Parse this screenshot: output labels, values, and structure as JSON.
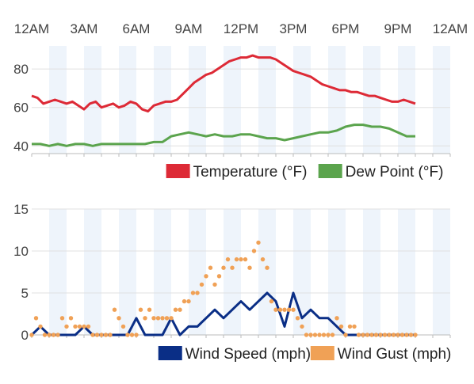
{
  "time_labels": [
    "12AM",
    "3AM",
    "6AM",
    "9AM",
    "12PM",
    "3PM",
    "6PM",
    "9PM",
    "12AM"
  ],
  "colors": {
    "temperature": "#dd2a36",
    "dew_point": "#5ba44d",
    "wind_speed": "#0a2e86",
    "wind_gust": "#f0a156",
    "band": "#eef4fb",
    "grid": "#e0e0e0",
    "text": "#444444"
  },
  "chart_data": [
    {
      "type": "line",
      "x_unit": "hours since midnight",
      "ylim": [
        36,
        92
      ],
      "yticks": [
        40,
        60,
        80
      ],
      "grid": true,
      "legend": "bottom-right",
      "series": [
        {
          "name": "Temperature (°F)",
          "x": [
            0,
            0.33,
            0.67,
            1,
            1.33,
            1.67,
            2,
            2.33,
            2.67,
            3,
            3.33,
            3.67,
            4,
            4.33,
            4.67,
            5,
            5.33,
            5.67,
            6,
            6.33,
            6.67,
            7,
            7.33,
            7.67,
            8,
            8.33,
            8.67,
            9,
            9.33,
            9.67,
            10,
            10.33,
            10.67,
            11,
            11.33,
            11.67,
            12,
            12.33,
            12.67,
            13,
            13.33,
            13.67,
            14,
            14.33,
            14.67,
            15,
            15.33,
            15.67,
            16,
            16.33,
            16.67,
            17,
            17.33,
            17.67,
            18,
            18.33,
            18.67,
            19,
            19.33,
            19.67,
            20,
            20.33,
            20.67,
            21,
            21.33,
            21.67,
            22
          ],
          "values": [
            66,
            65,
            62,
            63,
            64,
            63,
            62,
            63,
            61,
            59,
            62,
            63,
            60,
            61,
            62,
            60,
            61,
            63,
            62,
            59,
            58,
            61,
            62,
            63,
            63,
            64,
            67,
            70,
            73,
            75,
            77,
            78,
            80,
            82,
            84,
            85,
            86,
            86,
            87,
            86,
            86,
            86,
            85,
            83,
            81,
            79,
            78,
            77,
            76,
            74,
            72,
            71,
            70,
            69,
            69,
            68,
            68,
            67,
            66,
            66,
            65,
            64,
            63,
            63,
            64,
            63,
            62
          ]
        },
        {
          "name": "Dew Point (°F)",
          "x": [
            0,
            0.5,
            1,
            1.5,
            2,
            2.5,
            3,
            3.5,
            4,
            4.5,
            5,
            5.5,
            6,
            6.5,
            7,
            7.5,
            8,
            8.5,
            9,
            9.5,
            10,
            10.5,
            11,
            11.5,
            12,
            12.5,
            13,
            13.5,
            14,
            14.5,
            15,
            15.5,
            16,
            16.5,
            17,
            17.5,
            18,
            18.5,
            19,
            19.5,
            20,
            20.5,
            21,
            21.5,
            22
          ],
          "values": [
            41,
            41,
            40,
            41,
            40,
            41,
            41,
            40,
            41,
            41,
            41,
            41,
            41,
            41,
            42,
            42,
            45,
            46,
            47,
            46,
            45,
            46,
            45,
            45,
            46,
            46,
            45,
            44,
            44,
            43,
            44,
            45,
            46,
            47,
            47,
            48,
            50,
            51,
            51,
            50,
            50,
            49,
            47,
            45,
            45
          ]
        }
      ]
    },
    {
      "type": "line",
      "x_unit": "hours since midnight",
      "ylim": [
        0,
        15
      ],
      "yticks": [
        0,
        5,
        10,
        15
      ],
      "grid": true,
      "legend": "bottom-right",
      "series": [
        {
          "name": "Wind Speed (mph)",
          "x": [
            0,
            0.5,
            1,
            1.5,
            2,
            2.5,
            3,
            3.5,
            4,
            4.5,
            5,
            5.5,
            6,
            6.5,
            7,
            7.5,
            8,
            8.5,
            9,
            9.5,
            10,
            10.5,
            11,
            11.5,
            12,
            12.5,
            13,
            13.5,
            14,
            14.5,
            15,
            15.5,
            16,
            16.5,
            17,
            17.5,
            18,
            18.5,
            19,
            19.5,
            20,
            20.5,
            21,
            21.5,
            22
          ],
          "values": [
            0,
            1,
            0,
            0,
            0,
            0,
            1,
            0,
            0,
            0,
            0,
            0,
            2,
            0,
            0,
            0,
            2,
            0,
            1,
            1,
            2,
            3,
            2,
            3,
            4,
            3,
            4,
            5,
            4,
            1,
            5,
            2,
            3,
            2,
            2,
            1,
            0,
            0,
            0,
            0,
            0,
            0,
            0,
            0,
            0
          ],
          "stepX": 0.5
        },
        {
          "name": "Wind Gust (mph)",
          "x": [
            0,
            0.25,
            0.5,
            0.75,
            1,
            1.25,
            1.5,
            1.75,
            2,
            2.25,
            2.5,
            2.75,
            3,
            3.25,
            3.5,
            3.75,
            4,
            4.25,
            4.5,
            4.75,
            5,
            5.25,
            5.5,
            5.75,
            6,
            6.25,
            6.5,
            6.75,
            7,
            7.25,
            7.5,
            7.75,
            8,
            8.25,
            8.5,
            8.75,
            9,
            9.25,
            9.5,
            9.75,
            10,
            10.25,
            10.5,
            10.75,
            11,
            11.25,
            11.5,
            11.75,
            12,
            12.25,
            12.5,
            12.75,
            13,
            13.25,
            13.5,
            13.75,
            14,
            14.25,
            14.5,
            14.75,
            15,
            15.25,
            15.5,
            15.75,
            16,
            16.25,
            16.5,
            16.75,
            17,
            17.25,
            17.5,
            17.75,
            18,
            18.25,
            18.5,
            18.75,
            19,
            19.25,
            19.5,
            19.75,
            20,
            20.25,
            20.5,
            20.75,
            21,
            21.25,
            21.5,
            21.75,
            22
          ],
          "values": [
            0,
            2,
            1,
            0,
            0,
            0,
            0,
            2,
            1,
            2,
            1,
            1,
            1,
            1,
            0,
            0,
            0,
            0,
            0,
            3,
            2,
            1,
            0,
            0,
            0,
            3,
            2,
            3,
            2,
            2,
            2,
            2,
            2,
            3,
            3,
            4,
            4,
            5,
            5,
            6,
            7,
            8,
            6,
            7,
            8,
            9,
            8,
            9,
            9,
            9,
            8,
            10,
            11,
            9,
            8,
            4,
            3,
            3,
            3,
            3,
            3,
            2,
            1,
            0,
            0,
            0,
            0,
            0,
            0,
            0,
            2,
            1,
            0,
            1,
            1,
            0,
            0,
            0,
            0,
            0,
            0,
            0,
            0,
            0,
            0,
            0,
            0,
            0,
            0
          ]
        }
      ]
    }
  ]
}
